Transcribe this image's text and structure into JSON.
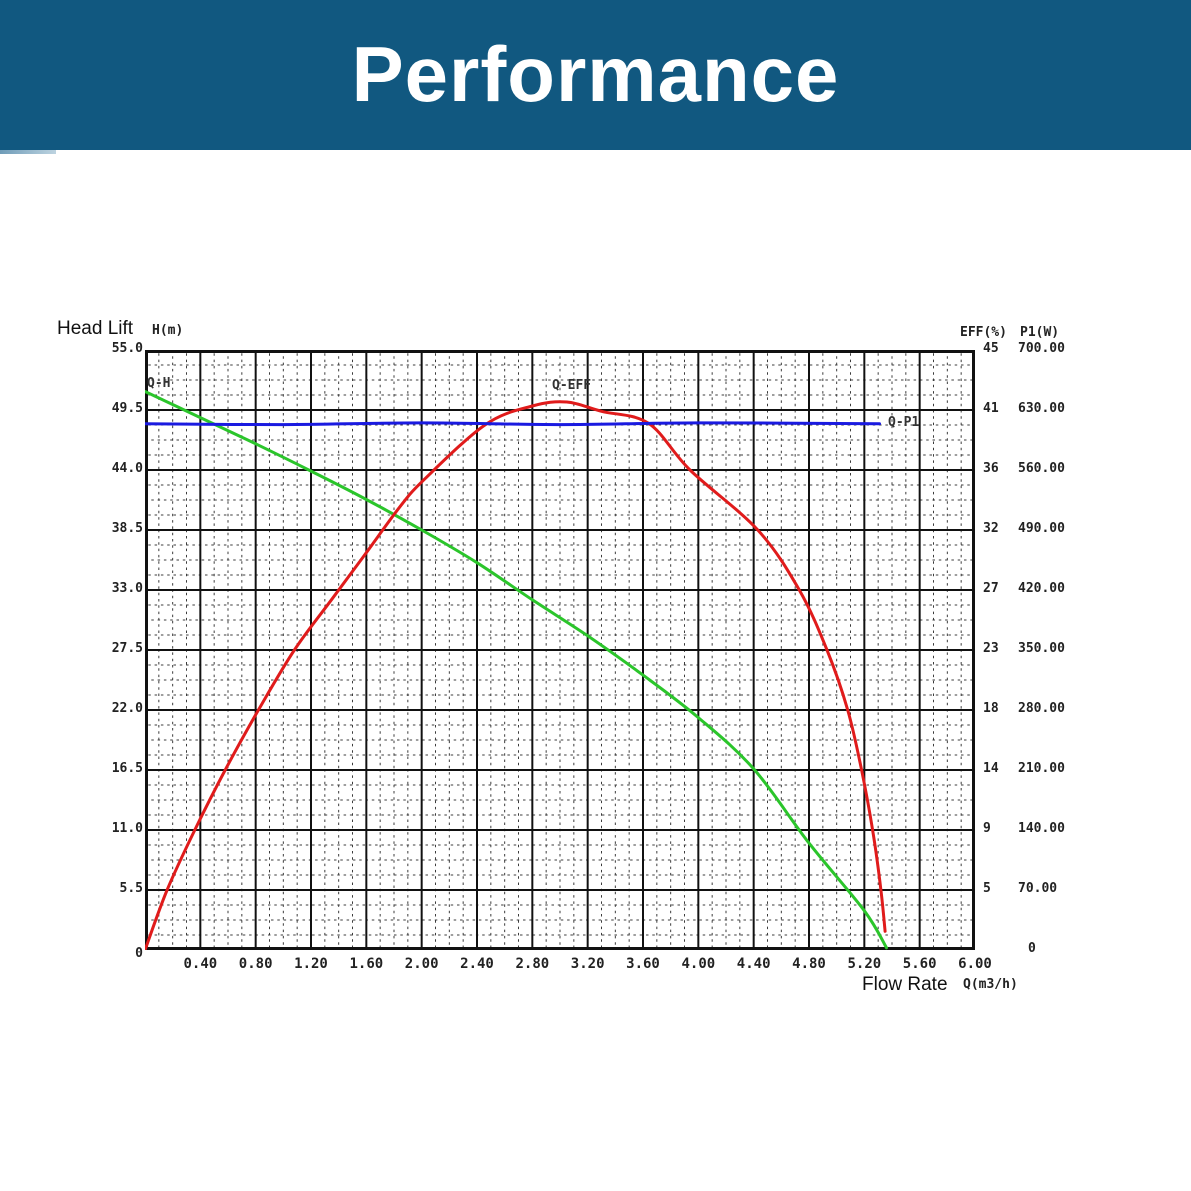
{
  "banner": {
    "title": "Performance",
    "bg_color": "#115880"
  },
  "annotations": {
    "y_left_title": "Head Lift",
    "x_title": "Flow Rate"
  },
  "chart_data": {
    "type": "line",
    "title": "Performance",
    "grid": {
      "major_cols": 15,
      "major_rows": 10,
      "minor_per_major": 4,
      "grid_on": true
    },
    "x_axis": {
      "name": "Flow Rate",
      "unit_label": "Q(m3/h)",
      "min": 0,
      "max": 6.0,
      "major_step": 0.4,
      "origin_label": "0",
      "tick_labels": [
        "0.40",
        "0.80",
        "1.20",
        "1.60",
        "2.00",
        "2.40",
        "2.80",
        "3.20",
        "3.60",
        "4.00",
        "4.40",
        "4.80",
        "5.20",
        "5.60",
        "6.00"
      ]
    },
    "y_left_axis": {
      "name": "Head Lift",
      "unit_label": "H(m)",
      "min": 0,
      "max": 55,
      "major_step": 5.5,
      "tick_labels": [
        "55.0",
        "49.5",
        "44.0",
        "38.5",
        "33.0",
        "27.5",
        "22.0",
        "16.5",
        "11.0",
        "5.5",
        "0"
      ]
    },
    "y_right_axis_eff": {
      "header": "EFF(%)",
      "min": 0,
      "max": 45,
      "tick_labels": [
        "45",
        "41",
        "36",
        "32",
        "27",
        "23",
        "18",
        "14",
        "9",
        "5"
      ]
    },
    "y_right_axis_p1": {
      "header": "P1(W)",
      "min": 0,
      "max": 700,
      "tick_labels": [
        "700.00",
        "630.00",
        "560.00",
        "490.00",
        "420.00",
        "350.00",
        "280.00",
        "210.00",
        "140.00",
        "70.00",
        "0"
      ]
    },
    "series": [
      {
        "name": "Q-H",
        "axis": "H",
        "color": "#2bc52b",
        "points": [
          [
            0,
            51.2
          ],
          [
            0.4,
            48.8
          ],
          [
            0.8,
            46.4
          ],
          [
            1.2,
            43.9
          ],
          [
            1.6,
            41.3
          ],
          [
            2.0,
            38.5
          ],
          [
            2.4,
            35.5
          ],
          [
            2.8,
            32.1
          ],
          [
            3.2,
            28.8
          ],
          [
            3.6,
            25.2
          ],
          [
            4.0,
            21.3
          ],
          [
            4.4,
            16.6
          ],
          [
            4.8,
            9.8
          ],
          [
            5.2,
            3.6
          ],
          [
            5.36,
            0.2
          ]
        ]
      },
      {
        "name": "Q-EFF",
        "axis": "EFF",
        "color": "#e01b1b",
        "points": [
          [
            0,
            0
          ],
          [
            0.16,
            4.5
          ],
          [
            0.36,
            9
          ],
          [
            0.58,
            13.5
          ],
          [
            0.82,
            18
          ],
          [
            1.08,
            22.5
          ],
          [
            1.35,
            26.3
          ],
          [
            1.6,
            29.8
          ],
          [
            1.84,
            33.2
          ],
          [
            2.02,
            35.3
          ],
          [
            2.46,
            39.4
          ],
          [
            2.8,
            40.8
          ],
          [
            3.05,
            41.1
          ],
          [
            3.3,
            40.4
          ],
          [
            3.64,
            39.5
          ],
          [
            3.94,
            36
          ],
          [
            4.43,
            31.5
          ],
          [
            4.73,
            27
          ],
          [
            4.93,
            22.5
          ],
          [
            5.08,
            18
          ],
          [
            5.18,
            13.5
          ],
          [
            5.26,
            9
          ],
          [
            5.32,
            4.5
          ],
          [
            5.35,
            1.4
          ]
        ]
      },
      {
        "name": "Q-P1",
        "axis": "P1",
        "color": "#1a1ae0",
        "points": [
          [
            0,
            614
          ],
          [
            1.0,
            613
          ],
          [
            2.0,
            615
          ],
          [
            3.0,
            613
          ],
          [
            4.0,
            615
          ],
          [
            5.31,
            614
          ]
        ]
      }
    ]
  }
}
